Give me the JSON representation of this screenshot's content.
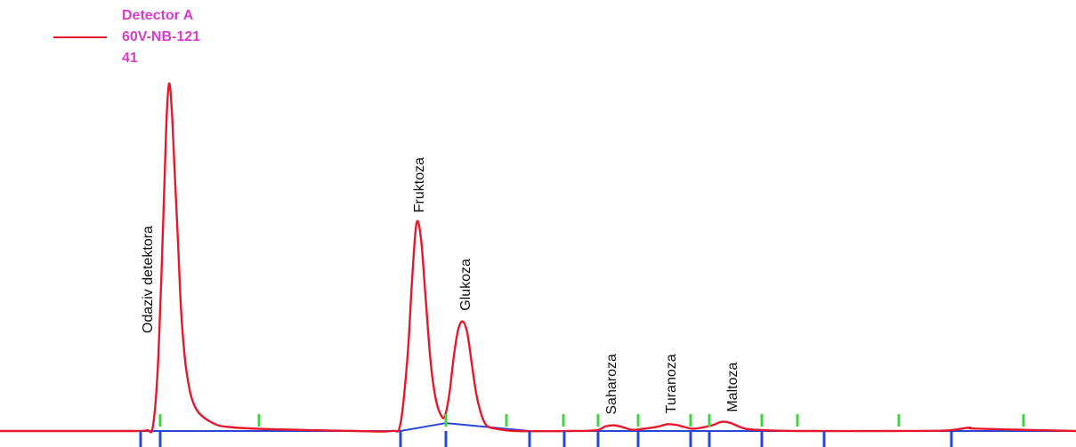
{
  "chart_data": {
    "type": "line",
    "title": "",
    "xlabel": "",
    "ylabel": "Odaziv detektora",
    "legend": {
      "position": "top-left",
      "lines": [
        "Detector A",
        "60V-NB-121",
        "41"
      ],
      "color": "#d63ec9"
    },
    "series": [
      {
        "name": "Detector A 60V-NB-121 41",
        "color": "#e8182c",
        "x": [
          0,
          100,
          150,
          165,
          172,
          178,
          184,
          187,
          190,
          193,
          196,
          200,
          204,
          210,
          220,
          240,
          260,
          300,
          400,
          440,
          450,
          458,
          463,
          468,
          473,
          478,
          484,
          490,
          496,
          500,
          505,
          510,
          515,
          520,
          525,
          530,
          535,
          540,
          545,
          550,
          560,
          580,
          640,
          670,
          680,
          690,
          700,
          710,
          720,
          740,
          750,
          760,
          770,
          780,
          800,
          810,
          820,
          830,
          840,
          860,
          900,
          1000,
          1060,
          1080,
          1090,
          1100,
          1209
        ],
        "y": [
          0,
          0,
          0,
          0.2,
          1.5,
          20,
          60,
          82,
          92,
          85,
          70,
          50,
          30,
          15,
          6,
          2,
          1,
          0.5,
          0,
          0,
          2,
          20,
          40,
          55,
          51,
          36,
          18,
          8,
          4,
          4,
          10,
          20,
          27,
          29,
          26,
          18,
          10,
          5,
          2,
          1,
          0.5,
          0,
          0,
          0.2,
          1.2,
          1.5,
          1,
          0.3,
          0.5,
          1.2,
          1.8,
          1.6,
          1,
          0.6,
          1.5,
          2.4,
          2.2,
          1.2,
          0.5,
          0.2,
          0,
          0,
          0.1,
          0.6,
          0.9,
          0.6,
          0
        ]
      }
    ],
    "ylim": [
      0,
      100
    ],
    "xlim": [
      0,
      1209
    ],
    "grid": false,
    "peaks": [
      {
        "label": "Fruktoza",
        "x": 470
      },
      {
        "label": "Glukoza",
        "x": 522
      },
      {
        "label": "Saharoza",
        "x": 686
      },
      {
        "label": "Turanoza",
        "x": 753
      },
      {
        "label": "Maltoza",
        "x": 822
      }
    ],
    "integration_markers": {
      "green": [
        180,
        291,
        501,
        569,
        633,
        672,
        717,
        776,
        797,
        856,
        896,
        1010,
        1150
      ],
      "blue_ticks": [
        158,
        180,
        450,
        501,
        595,
        634,
        672,
        717,
        776,
        797,
        856,
        926,
        1069
      ],
      "baseline": {
        "x": [
          158,
          450,
          501,
          595,
          1069,
          1209
        ],
        "y": [
          0,
          0,
          2.1,
          0,
          0,
          0
        ]
      }
    }
  }
}
